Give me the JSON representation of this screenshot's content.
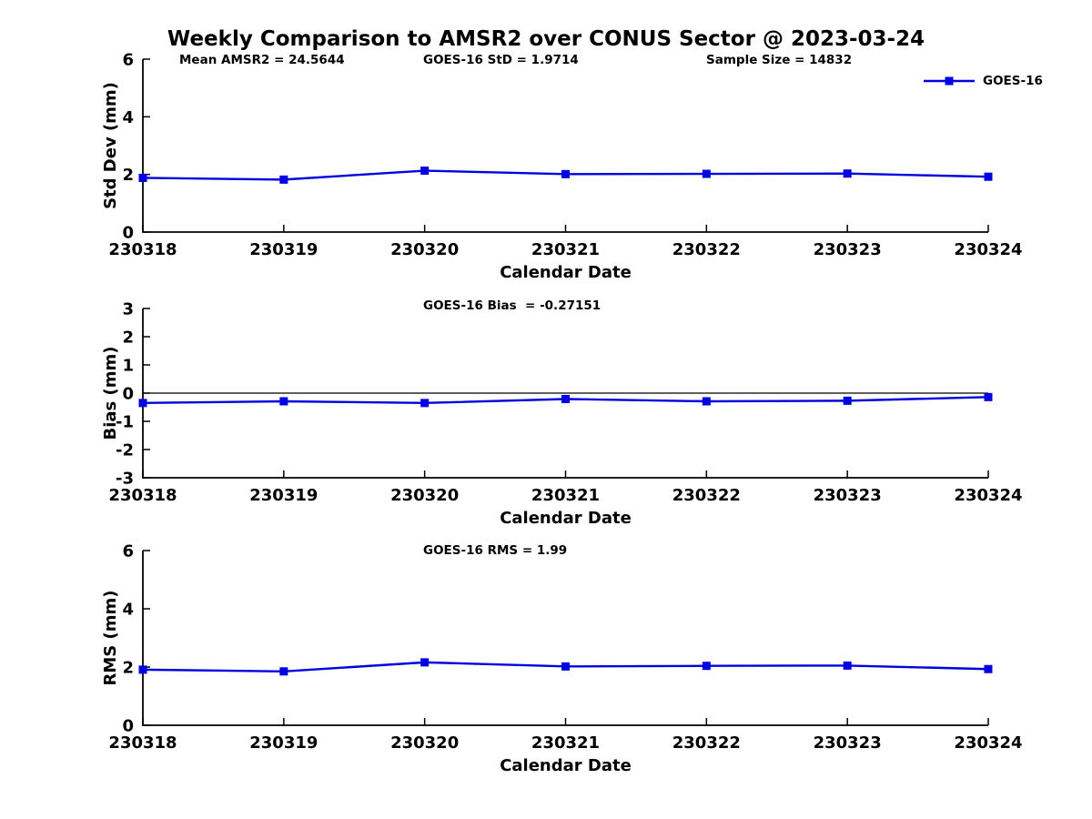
{
  "figure": {
    "title": "Weekly Comparison to AMSR2 over CONUS Sector @ 2023-03-24",
    "background": "#ffffff",
    "text_color": "#000000",
    "axis_color": "#000000",
    "legend": {
      "label": "GOES-16",
      "color": "#0000e0",
      "marker": "square",
      "position": "top-right"
    }
  },
  "chart_data": [
    {
      "type": "line",
      "id": "stddev",
      "title": "",
      "ylabel": "Std Dev (mm)",
      "xlabel": "Calendar Date",
      "ylim": [
        0,
        6
      ],
      "yticks": [
        0,
        2,
        4,
        6
      ],
      "grid": false,
      "legend_entries": [
        "GOES-16"
      ],
      "categories": [
        "230318",
        "230319",
        "230320",
        "230321",
        "230322",
        "230323",
        "230324"
      ],
      "annotations": [
        "Mean AMSR2 = 24.5644",
        "GOES-16 StD = 1.9714",
        "Sample Size = 14832"
      ],
      "series": [
        {
          "name": "GOES-16",
          "color": "#0000e0",
          "marker": "square",
          "values": [
            1.88,
            1.82,
            2.13,
            2.01,
            2.02,
            2.03,
            1.92
          ]
        }
      ]
    },
    {
      "type": "line",
      "id": "bias",
      "title": "",
      "ylabel": "Bias (mm)",
      "xlabel": "Calendar Date",
      "ylim": [
        -3,
        3
      ],
      "yticks": [
        -3,
        -2,
        -1,
        0,
        1,
        2,
        3
      ],
      "zero_line": true,
      "grid": false,
      "categories": [
        "230318",
        "230319",
        "230320",
        "230321",
        "230322",
        "230323",
        "230324"
      ],
      "annotations": [
        "GOES-16 Bias  = -0.27151"
      ],
      "series": [
        {
          "name": "GOES-16",
          "color": "#0000e0",
          "marker": "square",
          "values": [
            -0.35,
            -0.29,
            -0.35,
            -0.21,
            -0.29,
            -0.27,
            -0.14
          ]
        }
      ]
    },
    {
      "type": "line",
      "id": "rms",
      "title": "",
      "ylabel": "RMS (mm)",
      "xlabel": "Calendar Date",
      "ylim": [
        0,
        6
      ],
      "yticks": [
        0,
        2,
        4,
        6
      ],
      "grid": false,
      "categories": [
        "230318",
        "230319",
        "230320",
        "230321",
        "230322",
        "230323",
        "230324"
      ],
      "annotations": [
        "GOES-16 RMS = 1.99"
      ],
      "series": [
        {
          "name": "GOES-16",
          "color": "#0000e0",
          "marker": "square",
          "values": [
            1.91,
            1.85,
            2.16,
            2.02,
            2.04,
            2.05,
            1.93
          ]
        }
      ]
    }
  ]
}
